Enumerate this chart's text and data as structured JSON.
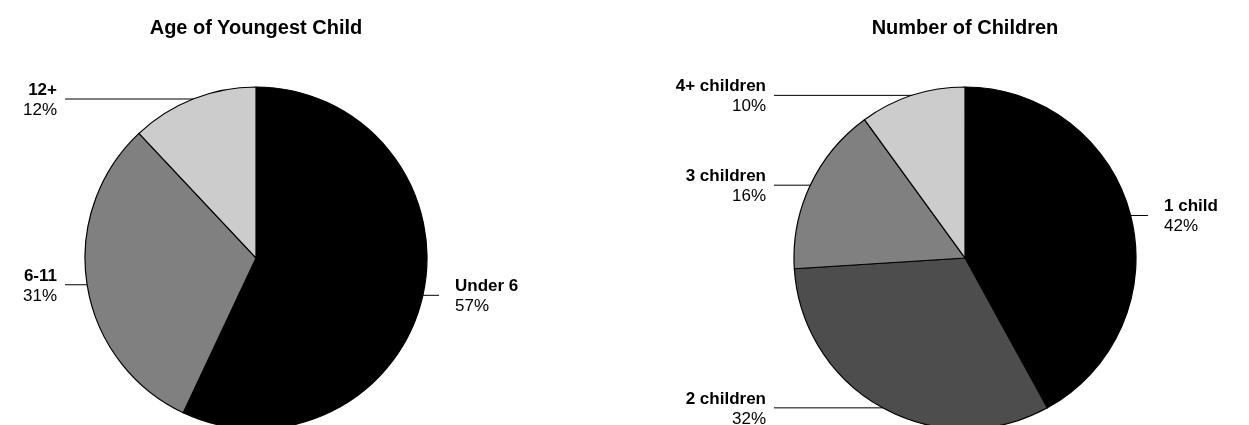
{
  "chart_data": [
    {
      "type": "pie",
      "title": "Age of Youngest Child",
      "categories": [
        "Under 6",
        "6-11",
        "12+"
      ],
      "values": [
        57,
        31,
        12
      ],
      "colors": [
        "#000000",
        "#808080",
        "#cccccc"
      ],
      "value_labels": [
        "57%",
        "31%",
        "12%"
      ]
    },
    {
      "type": "pie",
      "title": "Number of Children",
      "categories": [
        "1 child",
        "2 children",
        "3 children",
        "4+ children"
      ],
      "values": [
        42,
        32,
        16,
        10
      ],
      "colors": [
        "#000000",
        "#4d4d4d",
        "#808080",
        "#cccccc"
      ],
      "value_labels": [
        "42%",
        "32%",
        "16%",
        "10%"
      ]
    }
  ]
}
